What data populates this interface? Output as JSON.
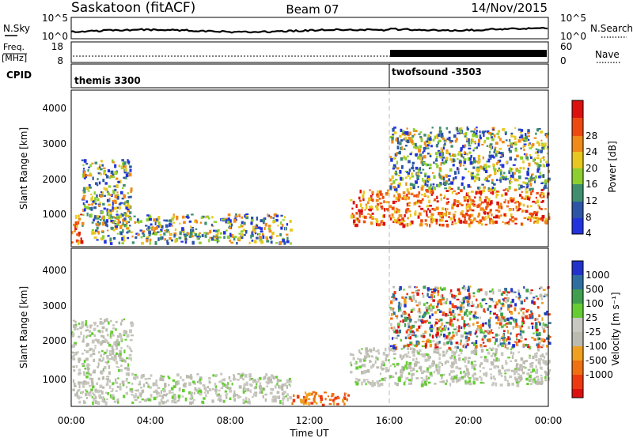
{
  "header": {
    "station": "Saskatoon (fitACF)",
    "beam": "Beam 07",
    "date": "14/Nov/2015"
  },
  "noise_panel": {
    "left_label": "N.Sky",
    "right_label": "N.Search",
    "left_ticks": [
      "10^5",
      "10^0"
    ],
    "right_ticks": [
      "10^5",
      "10^0"
    ]
  },
  "freq_panel": {
    "left_label_1": "Freq.",
    "left_label_2": "[MHz]",
    "right_label": "Nave",
    "left_ticks": [
      "18",
      "8"
    ],
    "right_ticks": [
      "60",
      "0"
    ]
  },
  "cpid": {
    "label": "CPID",
    "modes": [
      "themis 3300",
      "twofsound -3503"
    ]
  },
  "colors": {
    "power_scale": [
      "#2233dd",
      "#2d55a6",
      "#3f8f6f",
      "#8ccf2f",
      "#e8c820",
      "#f08a18",
      "#ee4a10",
      "#dd1010"
    ],
    "velocity_scale": [
      "#2233cc",
      "#2f6f9f",
      "#3f9f4f",
      "#66cc33",
      "#c8c8c0",
      "#bbbbb0",
      "#f0a020",
      "#ee7010",
      "#ee3a10",
      "#dd1010"
    ]
  },
  "chart_data": [
    {
      "type": "heatmap",
      "panel": "power",
      "ylabel": "Slant Range [km]",
      "ylim": [
        180,
        4500
      ],
      "yticks": [
        "1000",
        "2000",
        "3000",
        "4000"
      ],
      "colorbar_label": "Power [dB]",
      "colorbar_ticks": [
        "4",
        "8",
        "12",
        "16",
        "20",
        "24",
        "28"
      ],
      "x_ticks": [
        "00:00",
        "04:00",
        "08:00",
        "12:00",
        "16:00",
        "20:00",
        "00:00"
      ],
      "xlabel": "Time UT",
      "series": [
        {
          "hours": [
            0.0,
            0.5
          ],
          "range_km": [
            250,
            1200
          ],
          "level": "high",
          "value_db": 28
        },
        {
          "hours": [
            0.5,
            3.0
          ],
          "range_km": [
            800,
            2600
          ],
          "level": "mid",
          "value_db": 14
        },
        {
          "hours": [
            1.0,
            11.0
          ],
          "range_km": [
            300,
            1100
          ],
          "level": "mid",
          "value_db": 12
        },
        {
          "hours": [
            14.0,
            24.0
          ],
          "range_km": [
            800,
            1800
          ],
          "level": "high",
          "value_db": 24
        },
        {
          "hours": [
            16.0,
            24.0
          ],
          "range_km": [
            1800,
            3500
          ],
          "level": "mid",
          "value_db": 16
        }
      ]
    },
    {
      "type": "heatmap",
      "panel": "velocity",
      "ylabel": "Slant Range [km]",
      "ylim": [
        180,
        4500
      ],
      "yticks": [
        "1000",
        "2000",
        "3000",
        "4000"
      ],
      "colorbar_label": "Velocity [m s⁻¹]",
      "colorbar_ticks": [
        "1000",
        "500",
        "100",
        "25",
        "-25",
        "-100",
        "-500",
        "-1000"
      ],
      "x_ticks": [
        "00:00",
        "04:00",
        "08:00",
        "12:00",
        "16:00",
        "20:00",
        "00:00"
      ],
      "xlabel": "Time UT",
      "series": [
        {
          "hours": [
            0.0,
            3.0
          ],
          "range_km": [
            300,
            2600
          ],
          "level": "ground",
          "value_ms": 0
        },
        {
          "hours": [
            3.0,
            11.0
          ],
          "range_km": [
            300,
            1100
          ],
          "level": "ground",
          "value_ms": 0
        },
        {
          "hours": [
            11.0,
            14.0
          ],
          "range_km": [
            250,
            600
          ],
          "level": "negative",
          "value_ms": -100
        },
        {
          "hours": [
            14.0,
            24.0
          ],
          "range_km": [
            800,
            1800
          ],
          "level": "ground",
          "value_ms": 0
        },
        {
          "hours": [
            16.0,
            24.0
          ],
          "range_km": [
            1800,
            3500
          ],
          "level": "mixed",
          "value_ms": 100
        }
      ]
    }
  ]
}
